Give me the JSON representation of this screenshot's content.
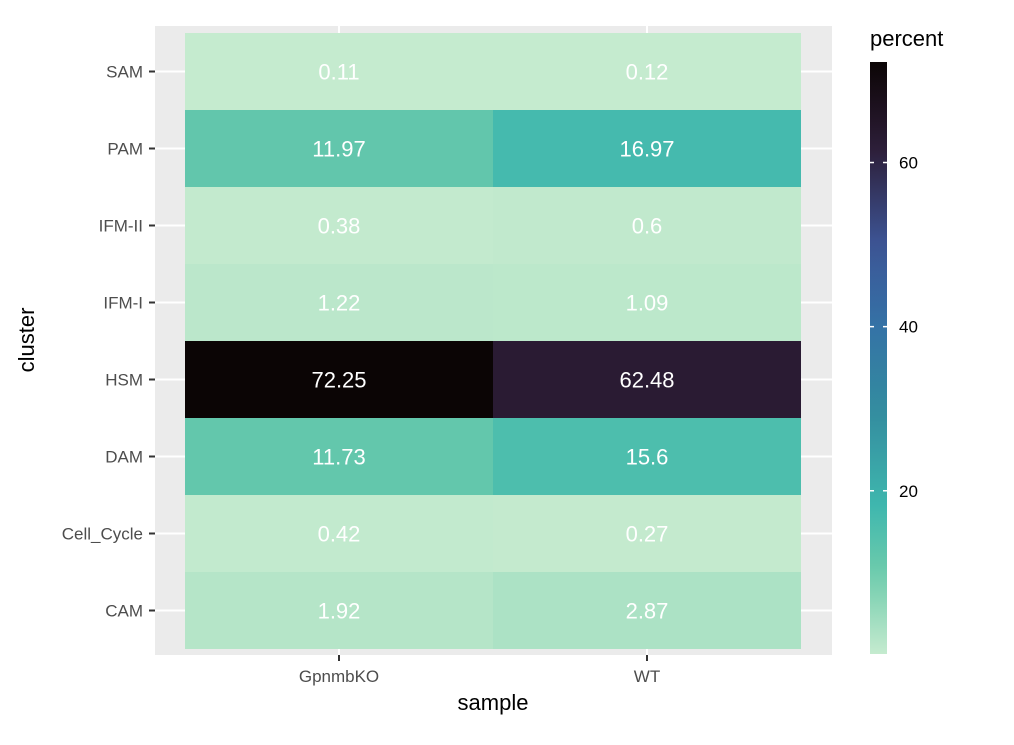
{
  "chart_data": {
    "type": "heatmap",
    "title": "",
    "xlabel": "sample",
    "ylabel": "cluster",
    "x_categories": [
      "GpnmbKO",
      "WT"
    ],
    "y_categories": [
      "SAM",
      "PAM",
      "IFM-II",
      "IFM-I",
      "HSM",
      "DAM",
      "Cell_Cycle",
      "CAM"
    ],
    "values": [
      [
        0.11,
        0.12
      ],
      [
        11.97,
        16.97
      ],
      [
        0.38,
        0.6
      ],
      [
        1.22,
        1.09
      ],
      [
        72.25,
        62.48
      ],
      [
        11.73,
        15.6
      ],
      [
        0.42,
        0.27
      ],
      [
        1.92,
        2.87
      ]
    ],
    "cell_labels": [
      [
        "0.11",
        "0.12"
      ],
      [
        "11.97",
        "16.97"
      ],
      [
        "0.38",
        "0.6"
      ],
      [
        "1.22",
        "1.09"
      ],
      [
        "72.25",
        "62.48"
      ],
      [
        "11.73",
        "15.6"
      ],
      [
        "0.42",
        "0.27"
      ],
      [
        "1.92",
        "2.87"
      ]
    ],
    "legend": {
      "title": "percent",
      "ticks": [
        20,
        40,
        60
      ],
      "tick_labels": [
        "20",
        "40",
        "60"
      ],
      "range": [
        0.11,
        72.25
      ],
      "placement": "right"
    },
    "color_scale": [
      {
        "value": 0,
        "color": "#c6ebcf"
      },
      {
        "value": 10,
        "color": "#6dcbac"
      },
      {
        "value": 18,
        "color": "#3fb8ae"
      },
      {
        "value": 30,
        "color": "#338b9f"
      },
      {
        "value": 40,
        "color": "#3472a6"
      },
      {
        "value": 50,
        "color": "#3d5596"
      },
      {
        "value": 62,
        "color": "#2c1c35"
      },
      {
        "value": 72.25,
        "color": "#0b0505"
      }
    ],
    "panel_background": "#ebebeb",
    "grid": true
  }
}
